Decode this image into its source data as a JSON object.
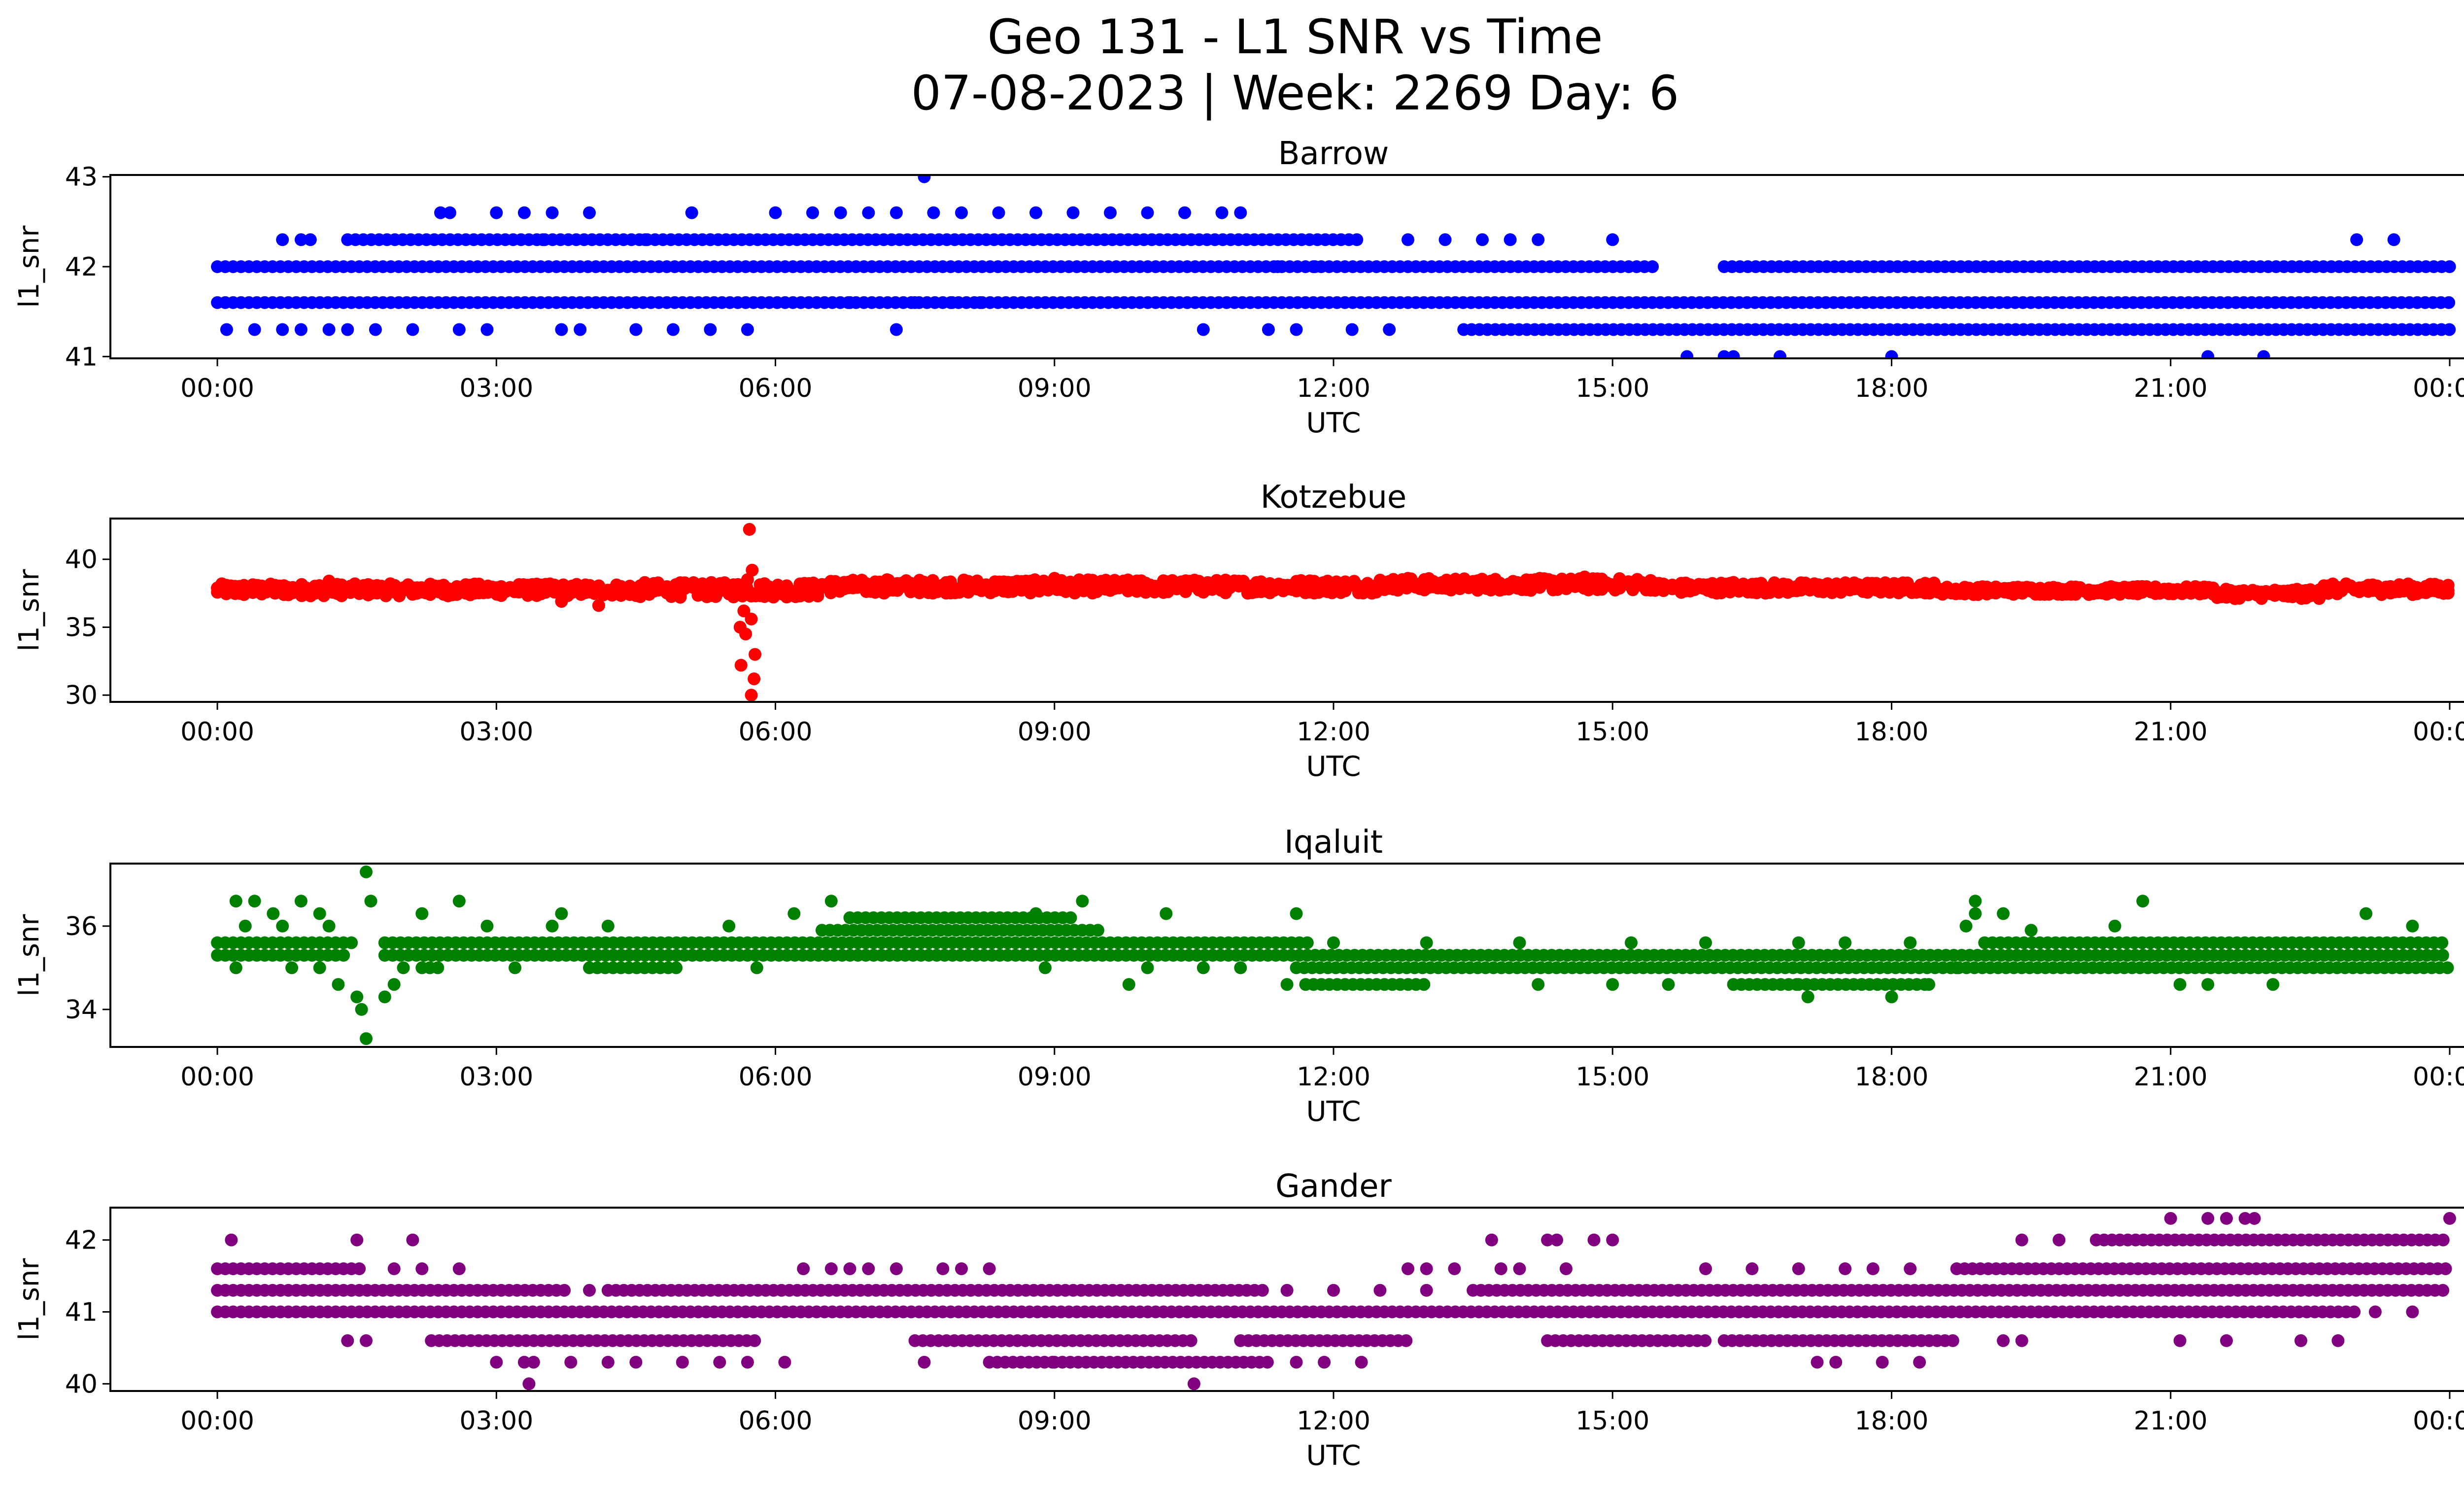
{
  "figure": {
    "title_line1": "Geo 131 - L1 SNR vs Time",
    "title_line2": "07-08-2023 | Week: 2269 Day: 6"
  },
  "x_axis": {
    "label": "UTC",
    "tick_hours": [
      0,
      3,
      6,
      9,
      12,
      15,
      18,
      21,
      24
    ],
    "tick_labels": [
      "00:00",
      "03:00",
      "06:00",
      "09:00",
      "12:00",
      "15:00",
      "18:00",
      "21:00",
      "00:00"
    ],
    "range_hours": [
      -1.15,
      25.15
    ]
  },
  "chart_data": [
    {
      "type": "scatter",
      "title": "Barrow",
      "xlabel": "UTC",
      "ylabel": "l1_snr",
      "color": "#0000ff",
      "ylim": [
        40.98,
        43.02
      ],
      "yticks": [
        41,
        42,
        43
      ],
      "yticklabels": [
        "41",
        "42",
        "43"
      ],
      "levels": [
        {
          "y": 42.0,
          "segments": [
            [
              0,
              15.5
            ],
            [
              16.2,
              24
            ]
          ]
        },
        {
          "y": 41.6,
          "segments": [
            [
              0,
              24
            ]
          ]
        },
        {
          "y": 42.3,
          "segments": [
            [
              1.4,
              12.3
            ]
          ]
        },
        {
          "y": 41.3,
          "segments": [
            [
              13.4,
              24
            ]
          ]
        }
      ],
      "points": [
        [
          0.1,
          41.3
        ],
        [
          0.4,
          41.3
        ],
        [
          0.7,
          41.3
        ],
        [
          0.9,
          41.3
        ],
        [
          1.2,
          41.3
        ],
        [
          1.4,
          41.3
        ],
        [
          1.7,
          41.3
        ],
        [
          2.1,
          41.3
        ],
        [
          2.6,
          41.3
        ],
        [
          2.9,
          41.3
        ],
        [
          3.7,
          41.3
        ],
        [
          3.9,
          41.3
        ],
        [
          4.5,
          41.3
        ],
        [
          4.9,
          41.3
        ],
        [
          5.3,
          41.3
        ],
        [
          5.7,
          41.3
        ],
        [
          7.3,
          41.3
        ],
        [
          10.6,
          41.3
        ],
        [
          11.3,
          41.3
        ],
        [
          11.6,
          41.3
        ],
        [
          12.2,
          41.3
        ],
        [
          12.6,
          41.3
        ],
        [
          0.7,
          42.3
        ],
        [
          0.9,
          42.3
        ],
        [
          1.0,
          42.3
        ],
        [
          3.5,
          42.3
        ],
        [
          4.6,
          42.3
        ],
        [
          5.3,
          42.3
        ],
        [
          12.8,
          42.3
        ],
        [
          13.2,
          42.3
        ],
        [
          13.6,
          42.3
        ],
        [
          13.9,
          42.3
        ],
        [
          14.2,
          42.3
        ],
        [
          15.0,
          42.3
        ],
        [
          23.0,
          42.3
        ],
        [
          23.4,
          42.3
        ],
        [
          2.4,
          42.6
        ],
        [
          2.5,
          42.6
        ],
        [
          3.0,
          42.6
        ],
        [
          3.3,
          42.6
        ],
        [
          3.6,
          42.6
        ],
        [
          4.0,
          42.6
        ],
        [
          5.1,
          42.6
        ],
        [
          6.0,
          42.6
        ],
        [
          6.4,
          42.6
        ],
        [
          6.7,
          42.6
        ],
        [
          7.0,
          42.6
        ],
        [
          7.3,
          42.6
        ],
        [
          7.7,
          42.6
        ],
        [
          8.0,
          42.6
        ],
        [
          8.4,
          42.6
        ],
        [
          8.8,
          42.6
        ],
        [
          9.2,
          42.6
        ],
        [
          9.6,
          42.6
        ],
        [
          10.0,
          42.6
        ],
        [
          10.4,
          42.6
        ],
        [
          10.8,
          42.6
        ],
        [
          11.0,
          42.6
        ],
        [
          7.6,
          43.0
        ],
        [
          15.8,
          41.0
        ],
        [
          16.2,
          41.0
        ],
        [
          16.3,
          41.0
        ],
        [
          16.8,
          41.0
        ],
        [
          18.0,
          41.0
        ],
        [
          21.4,
          41.0
        ],
        [
          22.0,
          41.0
        ],
        [
          6.8,
          41.6
        ],
        [
          7.5,
          41.6
        ],
        [
          7.9,
          41.6
        ],
        [
          8.2,
          41.6
        ],
        [
          11.4,
          42.0
        ],
        [
          11.8,
          42.0
        ]
      ]
    },
    {
      "type": "scatter",
      "title": "Kotzebue",
      "xlabel": "UTC",
      "ylabel": "l1_snr",
      "color": "#ff0000",
      "ylim": [
        29.5,
        43.0
      ],
      "yticks": [
        30,
        35,
        40
      ],
      "yticklabels": [
        "30",
        "35",
        "40"
      ],
      "bands": [
        {
          "x": [
            0,
            4.5
          ],
          "y": [
            37.3,
            38.2
          ]
        },
        {
          "x": [
            4.5,
            6.5
          ],
          "y": [
            37.2,
            38.3
          ]
        },
        {
          "x": [
            6.5,
            12.5
          ],
          "y": [
            37.5,
            38.5
          ]
        },
        {
          "x": [
            12.5,
            15.5
          ],
          "y": [
            37.7,
            38.6
          ]
        },
        {
          "x": [
            15.5,
            18.5
          ],
          "y": [
            37.5,
            38.3
          ]
        },
        {
          "x": [
            18.5,
            21.5
          ],
          "y": [
            37.4,
            38.0
          ]
        },
        {
          "x": [
            21.5,
            22.6
          ],
          "y": [
            37.1,
            37.8
          ]
        },
        {
          "x": [
            22.6,
            24.0
          ],
          "y": [
            37.4,
            38.2
          ]
        }
      ],
      "points": [
        [
          5.72,
          42.2
        ],
        [
          5.75,
          39.2
        ],
        [
          5.7,
          38.5
        ],
        [
          5.66,
          36.2
        ],
        [
          5.74,
          35.6
        ],
        [
          5.62,
          35.0
        ],
        [
          5.68,
          34.5
        ],
        [
          5.78,
          33.0
        ],
        [
          5.63,
          32.2
        ],
        [
          5.77,
          31.2
        ],
        [
          5.74,
          30.0
        ],
        [
          4.1,
          36.6
        ],
        [
          3.7,
          36.9
        ],
        [
          1.2,
          38.4
        ],
        [
          7.2,
          38.5
        ],
        [
          9.0,
          38.6
        ],
        [
          12.8,
          38.6
        ],
        [
          14.7,
          38.7
        ],
        [
          16.3,
          38.3
        ],
        [
          21.6,
          37.2
        ]
      ]
    },
    {
      "type": "scatter",
      "title": "Iqaluit",
      "xlabel": "UTC",
      "ylabel": "l1_snr",
      "color": "#008000",
      "ylim": [
        33.1,
        37.5
      ],
      "yticks": [
        34,
        36
      ],
      "yticklabels": [
        "34",
        "36"
      ],
      "levels": [
        {
          "y": 35.6,
          "segments": [
            [
              0,
              1.5
            ],
            [
              1.8,
              11.8
            ],
            [
              19.0,
              24
            ]
          ]
        },
        {
          "y": 35.3,
          "segments": [
            [
              0,
              1.4
            ],
            [
              1.8,
              24
            ]
          ]
        },
        {
          "y": 35.9,
          "segments": [
            [
              6.5,
              9.5
            ]
          ]
        },
        {
          "y": 36.2,
          "segments": [
            [
              6.8,
              9.2
            ]
          ]
        },
        {
          "y": 35.0,
          "segments": [
            [
              2.2,
              2.4
            ],
            [
              4.0,
              5.0
            ],
            [
              11.6,
              24
            ]
          ]
        },
        {
          "y": 34.6,
          "segments": [
            [
              11.7,
              13.0
            ],
            [
              16.3,
              17.0
            ],
            [
              17.0,
              18.4
            ]
          ]
        }
      ],
      "points": [
        [
          0.2,
          36.6
        ],
        [
          0.4,
          36.6
        ],
        [
          0.6,
          36.3
        ],
        [
          0.9,
          36.6
        ],
        [
          1.1,
          36.3
        ],
        [
          0.3,
          36.0
        ],
        [
          0.7,
          36.0
        ],
        [
          1.2,
          36.0
        ],
        [
          0.2,
          35.0
        ],
        [
          0.8,
          35.0
        ],
        [
          1.1,
          35.0
        ],
        [
          1.3,
          34.6
        ],
        [
          1.5,
          34.3
        ],
        [
          1.55,
          34.0
        ],
        [
          1.6,
          33.3
        ],
        [
          1.6,
          37.3
        ],
        [
          1.65,
          36.6
        ],
        [
          1.8,
          34.3
        ],
        [
          1.9,
          34.6
        ],
        [
          2.0,
          35.0
        ],
        [
          2.2,
          36.3
        ],
        [
          2.6,
          36.6
        ],
        [
          2.9,
          36.0
        ],
        [
          3.6,
          36.0
        ],
        [
          3.7,
          36.3
        ],
        [
          4.2,
          36.0
        ],
        [
          5.5,
          36.0
        ],
        [
          6.2,
          36.3
        ],
        [
          6.6,
          36.6
        ],
        [
          8.8,
          36.3
        ],
        [
          9.3,
          36.6
        ],
        [
          8.9,
          35.0
        ],
        [
          9.8,
          34.6
        ],
        [
          10.2,
          36.3
        ],
        [
          10.0,
          35.0
        ],
        [
          10.6,
          35.0
        ],
        [
          11.0,
          35.0
        ],
        [
          11.6,
          36.3
        ],
        [
          11.5,
          34.6
        ],
        [
          14.2,
          34.6
        ],
        [
          15.0,
          34.6
        ],
        [
          15.6,
          34.6
        ],
        [
          17.1,
          34.3
        ],
        [
          18.0,
          34.3
        ],
        [
          18.4,
          34.6
        ],
        [
          18.7,
          35.0
        ],
        [
          18.8,
          36.0
        ],
        [
          18.9,
          36.3
        ],
        [
          18.9,
          36.6
        ],
        [
          19.2,
          36.3
        ],
        [
          20.7,
          36.6
        ],
        [
          20.4,
          36.0
        ],
        [
          21.1,
          34.6
        ],
        [
          21.4,
          34.6
        ],
        [
          22.1,
          34.6
        ],
        [
          23.1,
          36.3
        ],
        [
          23.6,
          36.0
        ],
        [
          3.2,
          35.0
        ],
        [
          5.8,
          35.0
        ],
        [
          12.0,
          35.6
        ],
        [
          13.0,
          35.6
        ],
        [
          14.0,
          35.6
        ],
        [
          15.2,
          35.6
        ],
        [
          16.0,
          35.6
        ],
        [
          17.0,
          35.6
        ],
        [
          17.5,
          35.6
        ],
        [
          18.2,
          35.6
        ],
        [
          19.5,
          35.9
        ]
      ]
    },
    {
      "type": "scatter",
      "title": "Gander",
      "xlabel": "UTC",
      "ylabel": "l1_snr",
      "color": "#800080",
      "ylim": [
        39.9,
        42.45
      ],
      "yticks": [
        40,
        41,
        42
      ],
      "yticklabels": [
        "40",
        "41",
        "42"
      ],
      "levels": [
        {
          "y": 41.6,
          "segments": [
            [
              0,
              1.6
            ],
            [
              18.7,
              24
            ]
          ]
        },
        {
          "y": 41.3,
          "segments": [
            [
              0,
              3.8
            ],
            [
              4.2,
              11.3
            ],
            [
              13.5,
              24
            ]
          ]
        },
        {
          "y": 41.0,
          "segments": [
            [
              0,
              23.0
            ]
          ]
        },
        {
          "y": 40.6,
          "segments": [
            [
              2.3,
              5.8
            ],
            [
              7.5,
              10.5
            ],
            [
              11.0,
              12.8
            ],
            [
              14.3,
              16.0
            ],
            [
              16.2,
              18.7
            ]
          ]
        },
        {
          "y": 42.0,
          "segments": [
            [
              20.2,
              24
            ]
          ]
        },
        {
          "y": 40.3,
          "segments": [
            [
              8.3,
              9.0
            ],
            [
              9.0,
              11.3
            ]
          ]
        }
      ],
      "points": [
        [
          0.15,
          42.0
        ],
        [
          1.5,
          42.0
        ],
        [
          2.1,
          42.0
        ],
        [
          13.7,
          42.0
        ],
        [
          14.3,
          42.0
        ],
        [
          14.4,
          42.0
        ],
        [
          14.8,
          42.0
        ],
        [
          15.0,
          42.0
        ],
        [
          19.4,
          42.0
        ],
        [
          19.8,
          42.0
        ],
        [
          21.0,
          42.3
        ],
        [
          21.4,
          42.3
        ],
        [
          21.6,
          42.3
        ],
        [
          21.8,
          42.3
        ],
        [
          21.9,
          42.3
        ],
        [
          24.0,
          42.3
        ],
        [
          1.9,
          41.6
        ],
        [
          2.2,
          41.6
        ],
        [
          2.6,
          41.6
        ],
        [
          6.3,
          41.6
        ],
        [
          6.6,
          41.6
        ],
        [
          6.8,
          41.6
        ],
        [
          7.0,
          41.6
        ],
        [
          7.3,
          41.6
        ],
        [
          7.8,
          41.6
        ],
        [
          8.0,
          41.6
        ],
        [
          8.3,
          41.6
        ],
        [
          12.8,
          41.6
        ],
        [
          13.0,
          41.6
        ],
        [
          13.3,
          41.6
        ],
        [
          13.8,
          41.6
        ],
        [
          14.0,
          41.6
        ],
        [
          14.5,
          41.6
        ],
        [
          16.0,
          41.6
        ],
        [
          16.5,
          41.6
        ],
        [
          17.0,
          41.6
        ],
        [
          17.5,
          41.6
        ],
        [
          17.8,
          41.6
        ],
        [
          18.2,
          41.6
        ],
        [
          3.0,
          40.3
        ],
        [
          3.3,
          40.3
        ],
        [
          3.4,
          40.3
        ],
        [
          3.8,
          40.3
        ],
        [
          4.2,
          40.3
        ],
        [
          4.5,
          40.3
        ],
        [
          5.0,
          40.3
        ],
        [
          5.4,
          40.3
        ],
        [
          5.7,
          40.3
        ],
        [
          6.1,
          40.3
        ],
        [
          7.6,
          40.3
        ],
        [
          11.6,
          40.3
        ],
        [
          11.9,
          40.3
        ],
        [
          12.3,
          40.3
        ],
        [
          17.2,
          40.3
        ],
        [
          17.4,
          40.3
        ],
        [
          17.9,
          40.3
        ],
        [
          18.3,
          40.3
        ],
        [
          3.35,
          40.0
        ],
        [
          10.5,
          40.0
        ],
        [
          1.4,
          40.6
        ],
        [
          1.6,
          40.6
        ],
        [
          19.2,
          40.6
        ],
        [
          19.4,
          40.6
        ],
        [
          21.1,
          40.6
        ],
        [
          21.6,
          40.6
        ],
        [
          22.4,
          40.6
        ],
        [
          22.8,
          40.6
        ],
        [
          4.0,
          41.3
        ],
        [
          11.5,
          41.3
        ],
        [
          12.0,
          41.3
        ],
        [
          12.5,
          41.3
        ],
        [
          13.0,
          41.3
        ],
        [
          23.2,
          41.0
        ],
        [
          23.6,
          41.0
        ]
      ]
    }
  ]
}
